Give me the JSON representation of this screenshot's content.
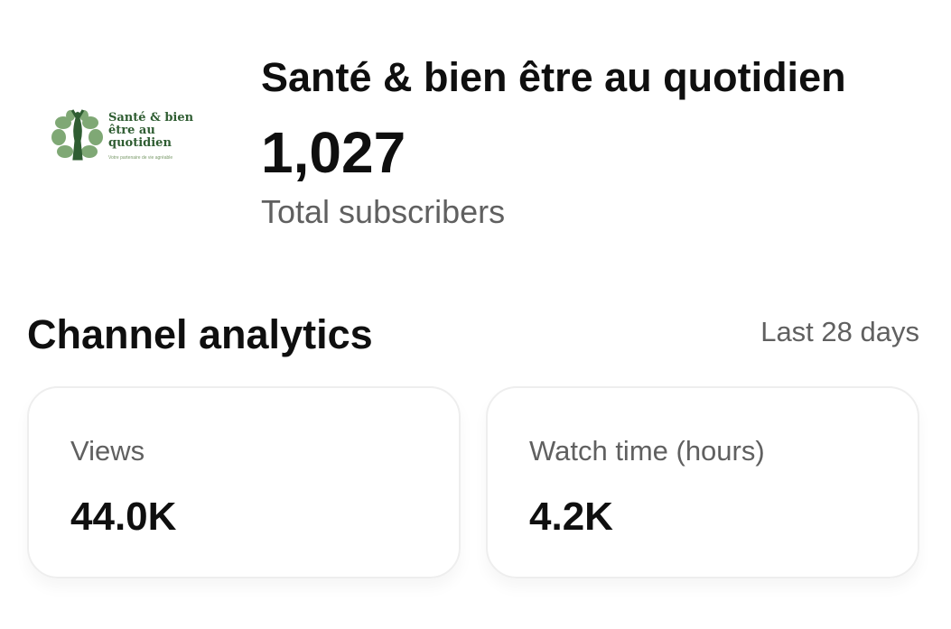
{
  "channel": {
    "logo_text": "Santé & bien être au quotidien",
    "logo_tagline": "Votre partenaire de vie agréable",
    "name": "Santé & bien être au quotidien",
    "subscribers": "1,027",
    "subscribers_label": "Total subscribers"
  },
  "analytics": {
    "title": "Channel analytics",
    "period": "Last 28 days",
    "cards": [
      {
        "label": "Views",
        "value": "44.0K"
      },
      {
        "label": "Watch time (hours)",
        "value": "4.2K"
      }
    ]
  },
  "colors": {
    "logo_green": "#2f5d32"
  }
}
